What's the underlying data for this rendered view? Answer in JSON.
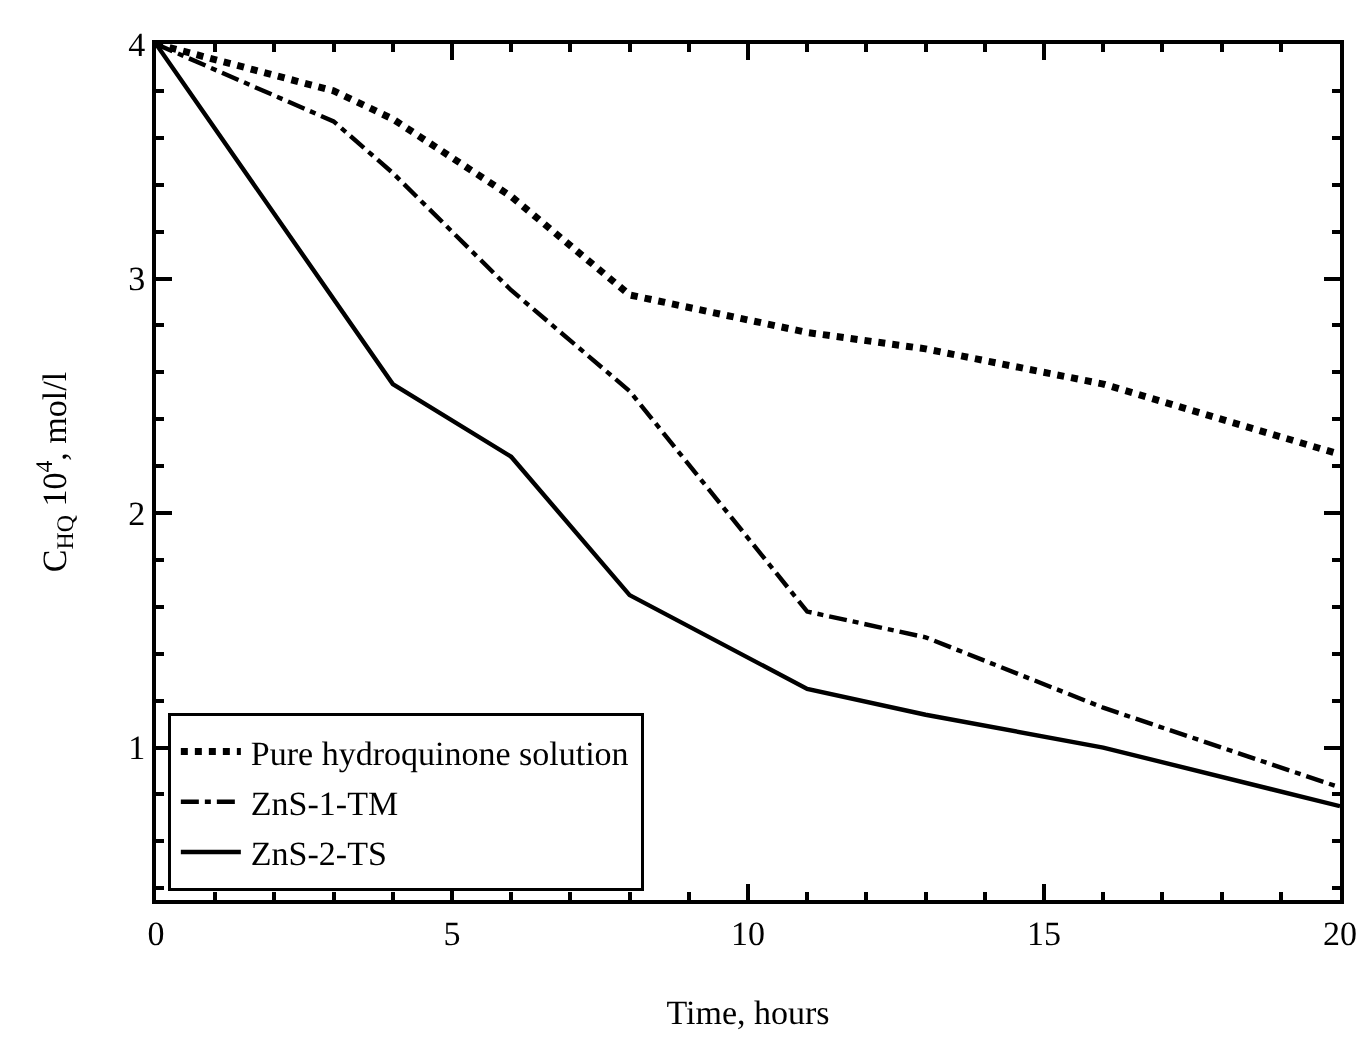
{
  "chart_data": {
    "type": "line",
    "xlabel": "Time, hours",
    "ylabel": "C$_{HQ}$ 10$^{4}$, mol/l",
    "xlim": [
      0,
      20
    ],
    "xticks": [
      0,
      5,
      10,
      15,
      20
    ],
    "ylim": [
      0.35,
      4
    ],
    "yticks": [
      1,
      2,
      3,
      4
    ],
    "grid": false,
    "legend": "bottom left",
    "marker": "none",
    "series": [
      {
        "name": "Pure hydroquinone solution",
        "color": "#000000",
        "line_style": "dotted",
        "x": [
          0,
          3,
          4,
          6,
          8,
          11,
          13,
          16,
          20
        ],
        "values": [
          4.0,
          3.8,
          3.68,
          3.35,
          2.93,
          2.77,
          2.7,
          2.55,
          2.25
        ]
      },
      {
        "name": "ZnS-1-TM",
        "color": "#000000",
        "line_style": "dashdot",
        "x": [
          0,
          3,
          4,
          6,
          8,
          11,
          13,
          16,
          20
        ],
        "values": [
          4.0,
          3.67,
          3.45,
          2.95,
          2.52,
          1.58,
          1.47,
          1.17,
          0.83
        ]
      },
      {
        "name": "ZnS-2-TS",
        "color": "#000000",
        "line_style": "solid",
        "x": [
          0,
          4,
          6,
          8,
          11,
          13,
          16,
          20
        ],
        "values": [
          4.0,
          2.55,
          2.24,
          1.65,
          1.25,
          1.14,
          1.0,
          0.75
        ]
      }
    ]
  }
}
